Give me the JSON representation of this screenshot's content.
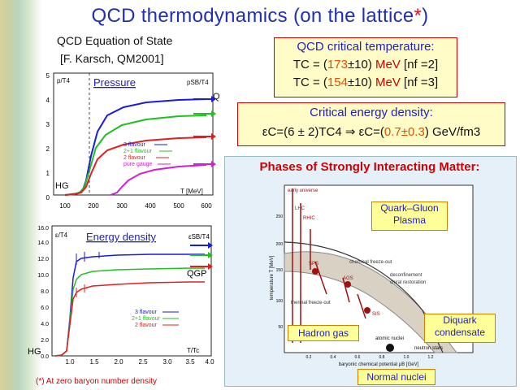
{
  "title": {
    "main": "QCD thermodynamics (on the lattice",
    "asterisk": "*",
    "close": ")"
  },
  "eos": {
    "line1": "QCD Equation of State",
    "line2": "[F. Karsch, QM2001]"
  },
  "pressure_plot": {
    "title": "Pressure",
    "ylabel": "p/T4",
    "sb_label": "pSB/T4",
    "xlabel": "T [MeV]",
    "hg": "HG",
    "qgp": "QGP",
    "yticks": [
      "0",
      "1",
      "2",
      "3",
      "4",
      "5"
    ],
    "xticks": [
      "100",
      "200",
      "300",
      "400",
      "500",
      "600"
    ],
    "legend": [
      "3 flavour",
      "2+1 flavour",
      "2 flavour",
      "pure gauge"
    ]
  },
  "energy_plot": {
    "title": "Energy density",
    "ylabel": "ε/T4",
    "sb_label": "εSB/T4",
    "xlabel": "T/Tc",
    "hg": "HG",
    "qgp": "QGP",
    "yticks": [
      "0.0",
      "2.0",
      "4.0",
      "6.0",
      "8.0",
      "10.0",
      "12.0",
      "14.0",
      "16.0"
    ],
    "xticks": [
      "1.0",
      "1.5",
      "2.0",
      "2.5",
      "3.0",
      "3.5",
      "4.0"
    ],
    "legend": [
      "3 flavour",
      "2+1 flavour",
      "2 flavour"
    ]
  },
  "footnote": "(*) At zero baryon number density",
  "tc_box": {
    "heading": "QCD critical temperature:",
    "line1_pre": "TC = (",
    "line1_val": "173",
    "line1_mid": "±10) ",
    "line1_unit": "MeV",
    "line1_post": " [nf =2]",
    "line2_pre": "TC = (",
    "line2_val": "154",
    "line2_mid": "±10) ",
    "line2_unit": "MeV",
    "line2_post": " [nf =3]"
  },
  "energy_box": {
    "heading": "Critical energy density:",
    "formula_left": "εC=(6 ± 2)TC4",
    "arrow": "⇒",
    "formula_right_pre": "εC=(",
    "formula_right_val": "0.7±0.3",
    "formula_right_post": ") GeV/fm3"
  },
  "phases": {
    "title": "Phases of Strongly Interacting Matter:",
    "qgp": "Quark–Gluon Plasma",
    "hadron_gas": "Hadron gas",
    "diquark": "Diquark condensate",
    "normal_nuclei": "Normal nuclei",
    "ylabel": "temperature T [MeV]",
    "xlabel": "baryonic chemical potential μB [GeV]",
    "labels": [
      "early universe",
      "LHC",
      "RHIC",
      "SPS",
      "AGS",
      "SIS",
      "chemical freeze-out",
      "thermal freeze-out",
      "deconfinement",
      "chiral restoration",
      "atomic nuclei",
      "neutron stars"
    ],
    "yticks": [
      "50",
      "100",
      "150",
      "200",
      "250"
    ],
    "xticks": [
      "0.2",
      "0.4",
      "0.6",
      "0.8",
      "1.0",
      "1.2"
    ]
  },
  "colors": {
    "title": "#1f2fb8",
    "red": "#d00000",
    "orange": "#e05000",
    "blue": "#2020c0",
    "green": "#20c020",
    "magenta": "#d020d0"
  }
}
